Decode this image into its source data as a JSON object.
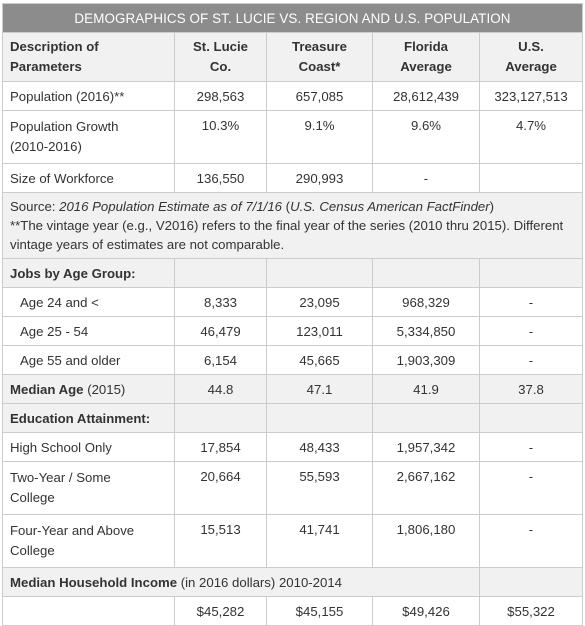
{
  "title": "DEMOGRAPHICS OF ST. LUCIE VS. REGION AND U.S. POPULATION",
  "header": {
    "col0": [
      "Description of",
      "Parameters"
    ],
    "col1": [
      "St. Lucie",
      "Co."
    ],
    "col2": [
      "Treasure",
      "Coast*"
    ],
    "col3": [
      "Florida",
      "Average"
    ],
    "col4": [
      "U.S.",
      "Average"
    ]
  },
  "population": {
    "label": "Population (2016)**",
    "values": [
      "298,563",
      "657,085",
      "28,612,439",
      "323,127,513"
    ]
  },
  "growth": {
    "label1": "Population Growth",
    "label2": "(2010-2016)",
    "values": [
      "10.3%",
      "9.1%",
      "9.6%",
      "4.7%"
    ]
  },
  "workforce": {
    "label": "Size of Workforce",
    "values": [
      "136,550",
      "290,993",
      "-",
      ""
    ]
  },
  "source": {
    "prefix": "Source: ",
    "italic1": "2016 Population Estimate as of 7/1/16",
    "middle": " (",
    "italic2": "U.S. Census American FactFinder",
    "suffix": ")",
    "note": "**The vintage year (e.g., V2016) refers to the final year of the series (2010 thru 2015). Different vintage years of estimates are not comparable."
  },
  "jobs": {
    "heading": "Jobs by Age Group:",
    "rows": [
      {
        "label": "Age 24 and <",
        "values": [
          "8,333",
          "23,095",
          "968,329",
          "-"
        ]
      },
      {
        "label": "Age 25 - 54",
        "values": [
          "46,479",
          "123,011",
          "5,334,850",
          "-"
        ]
      },
      {
        "label": "Age 55 and older",
        "values": [
          "6,154",
          "45,665",
          "1,903,309",
          "-"
        ]
      }
    ]
  },
  "median_age": {
    "label_bold": "Median Age",
    "label_rest": " (2015)",
    "values": [
      "44.8",
      "47.1",
      "41.9",
      "37.8"
    ]
  },
  "education": {
    "heading": "Education Attainment:",
    "hs": {
      "label": "High School Only",
      "values": [
        "17,854",
        "48,433",
        "1,957,342",
        "-"
      ]
    },
    "two_year": {
      "label1": "Two-Year / Some",
      "label2": "College",
      "values": [
        "20,664",
        "55,593",
        "2,667,162",
        "-"
      ]
    },
    "four_year": {
      "label1": "Four-Year and Above",
      "label2": "College",
      "values": [
        "15,513",
        "41,741",
        "1,806,180",
        "-"
      ]
    }
  },
  "income": {
    "label_bold": "Median Household Income",
    "label_rest": " (in 2016 dollars) 2010-2014",
    "values": [
      "$45,282",
      "$45,155",
      "$49,426",
      "$55,322"
    ]
  }
}
